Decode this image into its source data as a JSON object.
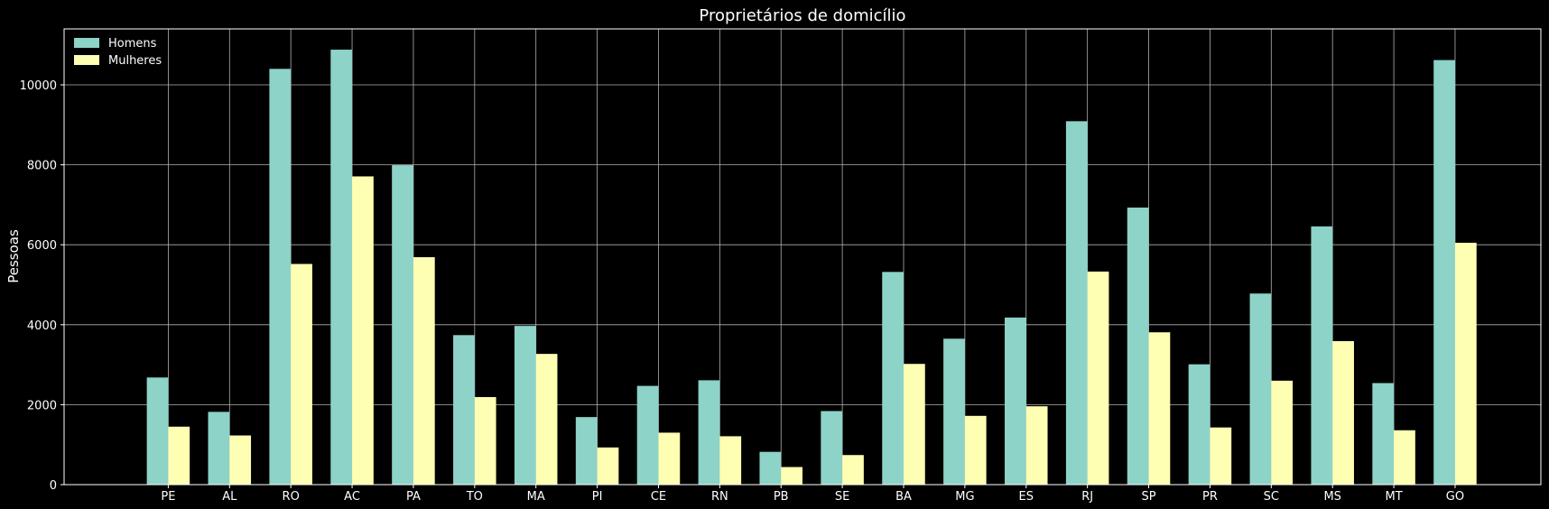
{
  "chart_data": {
    "type": "bar",
    "title": "Proprietários de domicílio",
    "xlabel": "",
    "ylabel": "Pessoas",
    "ylim": [
      0,
      11400
    ],
    "yticks": [
      0,
      2000,
      4000,
      6000,
      8000,
      10000
    ],
    "grid": true,
    "legend_position": "top-left",
    "categories": [
      "PE",
      "AL",
      "RO",
      "AC",
      "PA",
      "TO",
      "MA",
      "PI",
      "CE",
      "RN",
      "PB",
      "SE",
      "BA",
      "MG",
      "ES",
      "RJ",
      "SP",
      "PR",
      "SC",
      "MS",
      "MT",
      "GO"
    ],
    "series": [
      {
        "name": "Homens",
        "color": "#8dd3c7",
        "values": [
          2680,
          1820,
          10400,
          10880,
          7990,
          3740,
          3970,
          1690,
          2470,
          2610,
          820,
          1840,
          5320,
          3650,
          4180,
          9090,
          6930,
          3010,
          4780,
          6460,
          2540,
          10620
        ]
      },
      {
        "name": "Mulheres",
        "color": "#ffffb3",
        "values": [
          1450,
          1230,
          5520,
          7710,
          5690,
          2190,
          3270,
          930,
          1300,
          1210,
          440,
          740,
          3020,
          1720,
          1960,
          5330,
          3810,
          1430,
          2600,
          3590,
          1360,
          6050
        ]
      }
    ]
  }
}
